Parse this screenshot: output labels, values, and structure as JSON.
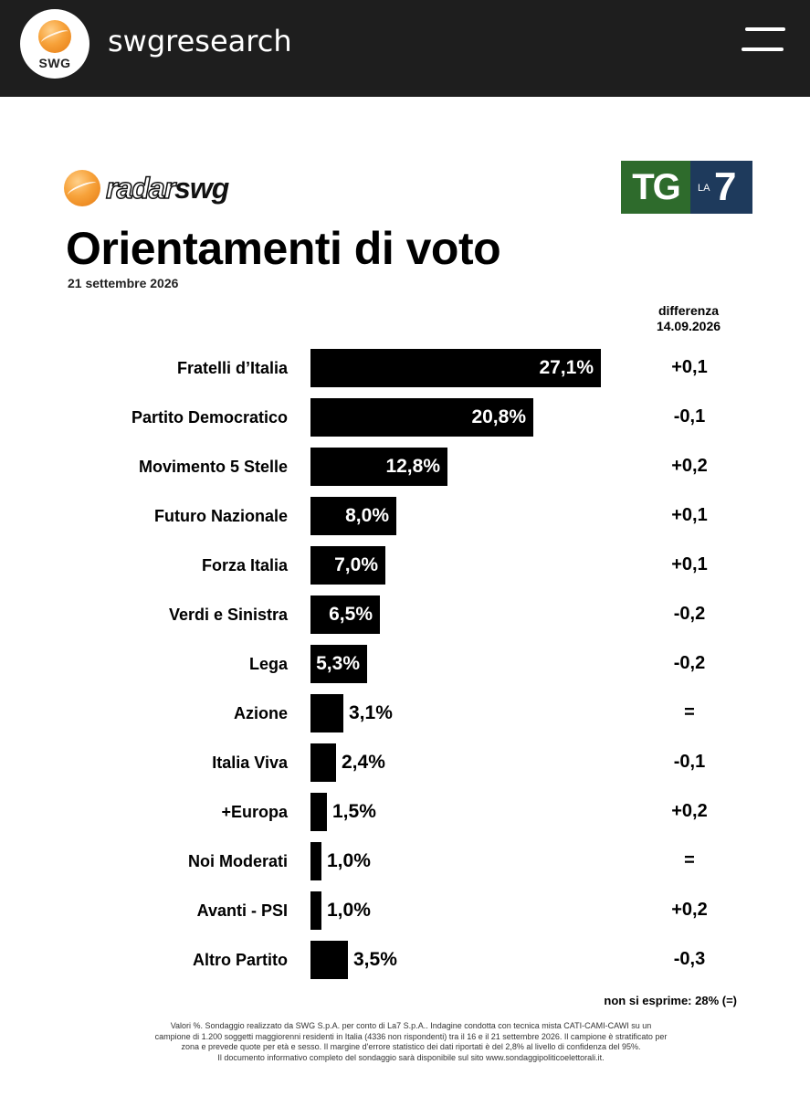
{
  "header": {
    "username": "swgresearch",
    "avatar_text": "SWG",
    "avatar_icon": "swg-ball-logo",
    "menu_icon": "hamburger-menu-icon"
  },
  "card": {
    "brand_prefix": "radar",
    "brand_suffix": "swg",
    "partner_left": "TG",
    "partner_la": "LA",
    "partner_seven": "7",
    "title": "Orientamenti di voto",
    "date": "21 settembre 2026",
    "diff_header_line1": "differenza",
    "diff_header_line2": "14.09.2026",
    "non_si_esprime": "non si esprime: 28% (=)",
    "footnote": [
      "Valori %. Sondaggio realizzato da SWG S.p.A. per conto di La7 S.p.A.. Indagine condotta con tecnica mista CATI-CAMI-CAWI su un",
      "campione di 1.200 soggetti maggiorenni residenti in Italia (4336 non rispondenti) tra il 16 e il 21 settembre 2026. Il campione è stratificato per",
      "zona e prevede quote per età e sesso. Il margine d'errore statistico dei dati riportati è del 2,8% al livello di confidenza del 95%.",
      "Il documento informativo completo del sondaggio sarà disponibile sul sito www.sondaggipoliticoelettorali.it."
    ]
  },
  "chart_data": {
    "type": "bar",
    "orientation": "horizontal",
    "title": "Orientamenti di voto",
    "categories": [
      "Fratelli d’Italia",
      "Partito Democratico",
      "Movimento 5 Stelle",
      "Futuro Nazionale",
      "Forza Italia",
      "Verdi e Sinistra",
      "Lega",
      "Azione",
      "Italia Viva",
      "+Europa",
      "Noi Moderati",
      "Avanti - PSI",
      "Altro Partito"
    ],
    "values": [
      27.1,
      20.8,
      12.8,
      8.0,
      7.0,
      6.5,
      5.3,
      3.1,
      2.4,
      1.5,
      1.0,
      1.0,
      3.5
    ],
    "value_labels": [
      "27,1%",
      "20,8%",
      "12,8%",
      "8,0%",
      "7,0%",
      "6,5%",
      "5,3%",
      "3,1%",
      "2,4%",
      "1,5%",
      "1,0%",
      "1,0%",
      "3,5%"
    ],
    "differences": [
      "+0,1",
      "-0,1",
      "+0,2",
      "+0,1",
      "+0,1",
      "-0,2",
      "-0,2",
      "=",
      "-0,1",
      "+0,2",
      "=",
      "+0,2",
      "-0,3"
    ],
    "bar_color": "#000000"
  }
}
